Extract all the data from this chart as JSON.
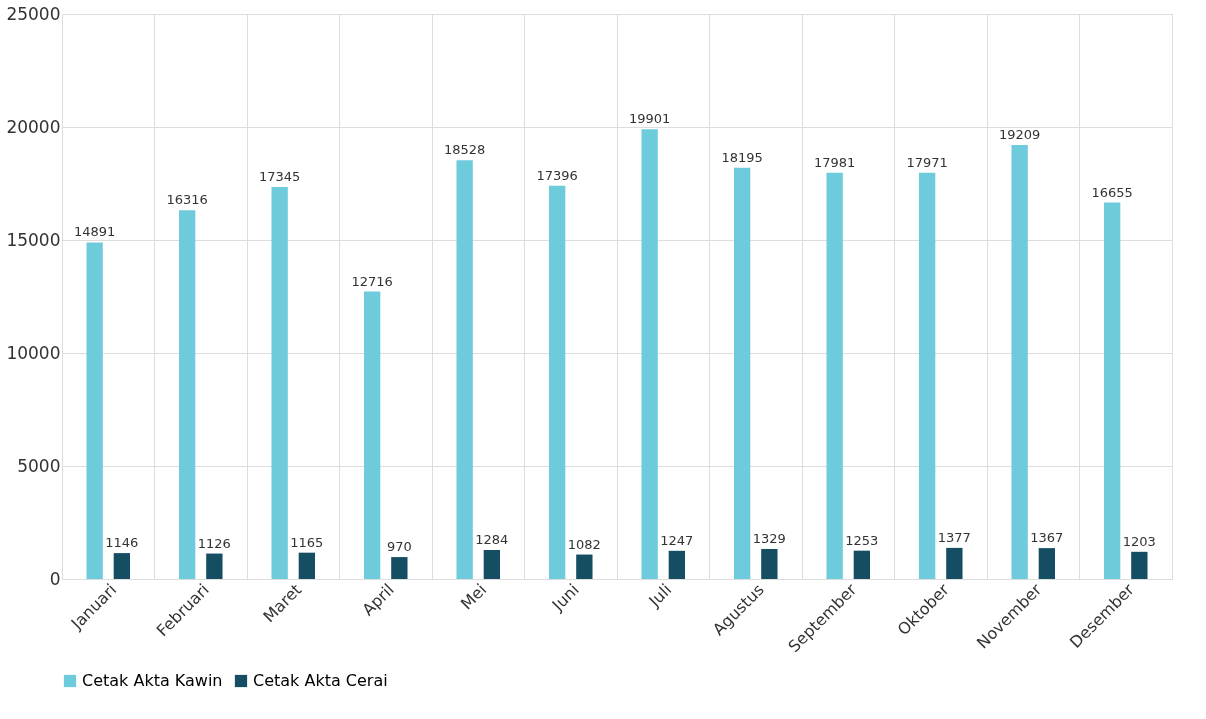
{
  "chart_data": {
    "type": "bar",
    "categories": [
      "Januari",
      "Februari",
      "Maret",
      "April",
      "Mei",
      "Juni",
      "Juli",
      "Agustus",
      "September",
      "Oktober",
      "November",
      "Desember"
    ],
    "series": [
      {
        "name": "Cetak Akta Kawin",
        "color": "#6dcbdc",
        "values": [
          14891,
          16316,
          17345,
          12716,
          18528,
          17396,
          19901,
          18195,
          17981,
          17971,
          19209,
          16655
        ]
      },
      {
        "name": "Cetak Akta Cerai",
        "color": "#154e63",
        "values": [
          1146,
          1126,
          1165,
          970,
          1284,
          1082,
          1247,
          1329,
          1253,
          1377,
          1367,
          1203
        ]
      }
    ],
    "ylim": [
      0,
      25000
    ],
    "yticks": [
      0,
      5000,
      10000,
      15000,
      20000,
      25000
    ],
    "grid": true,
    "legend": "bottom",
    "data_labels": true
  }
}
